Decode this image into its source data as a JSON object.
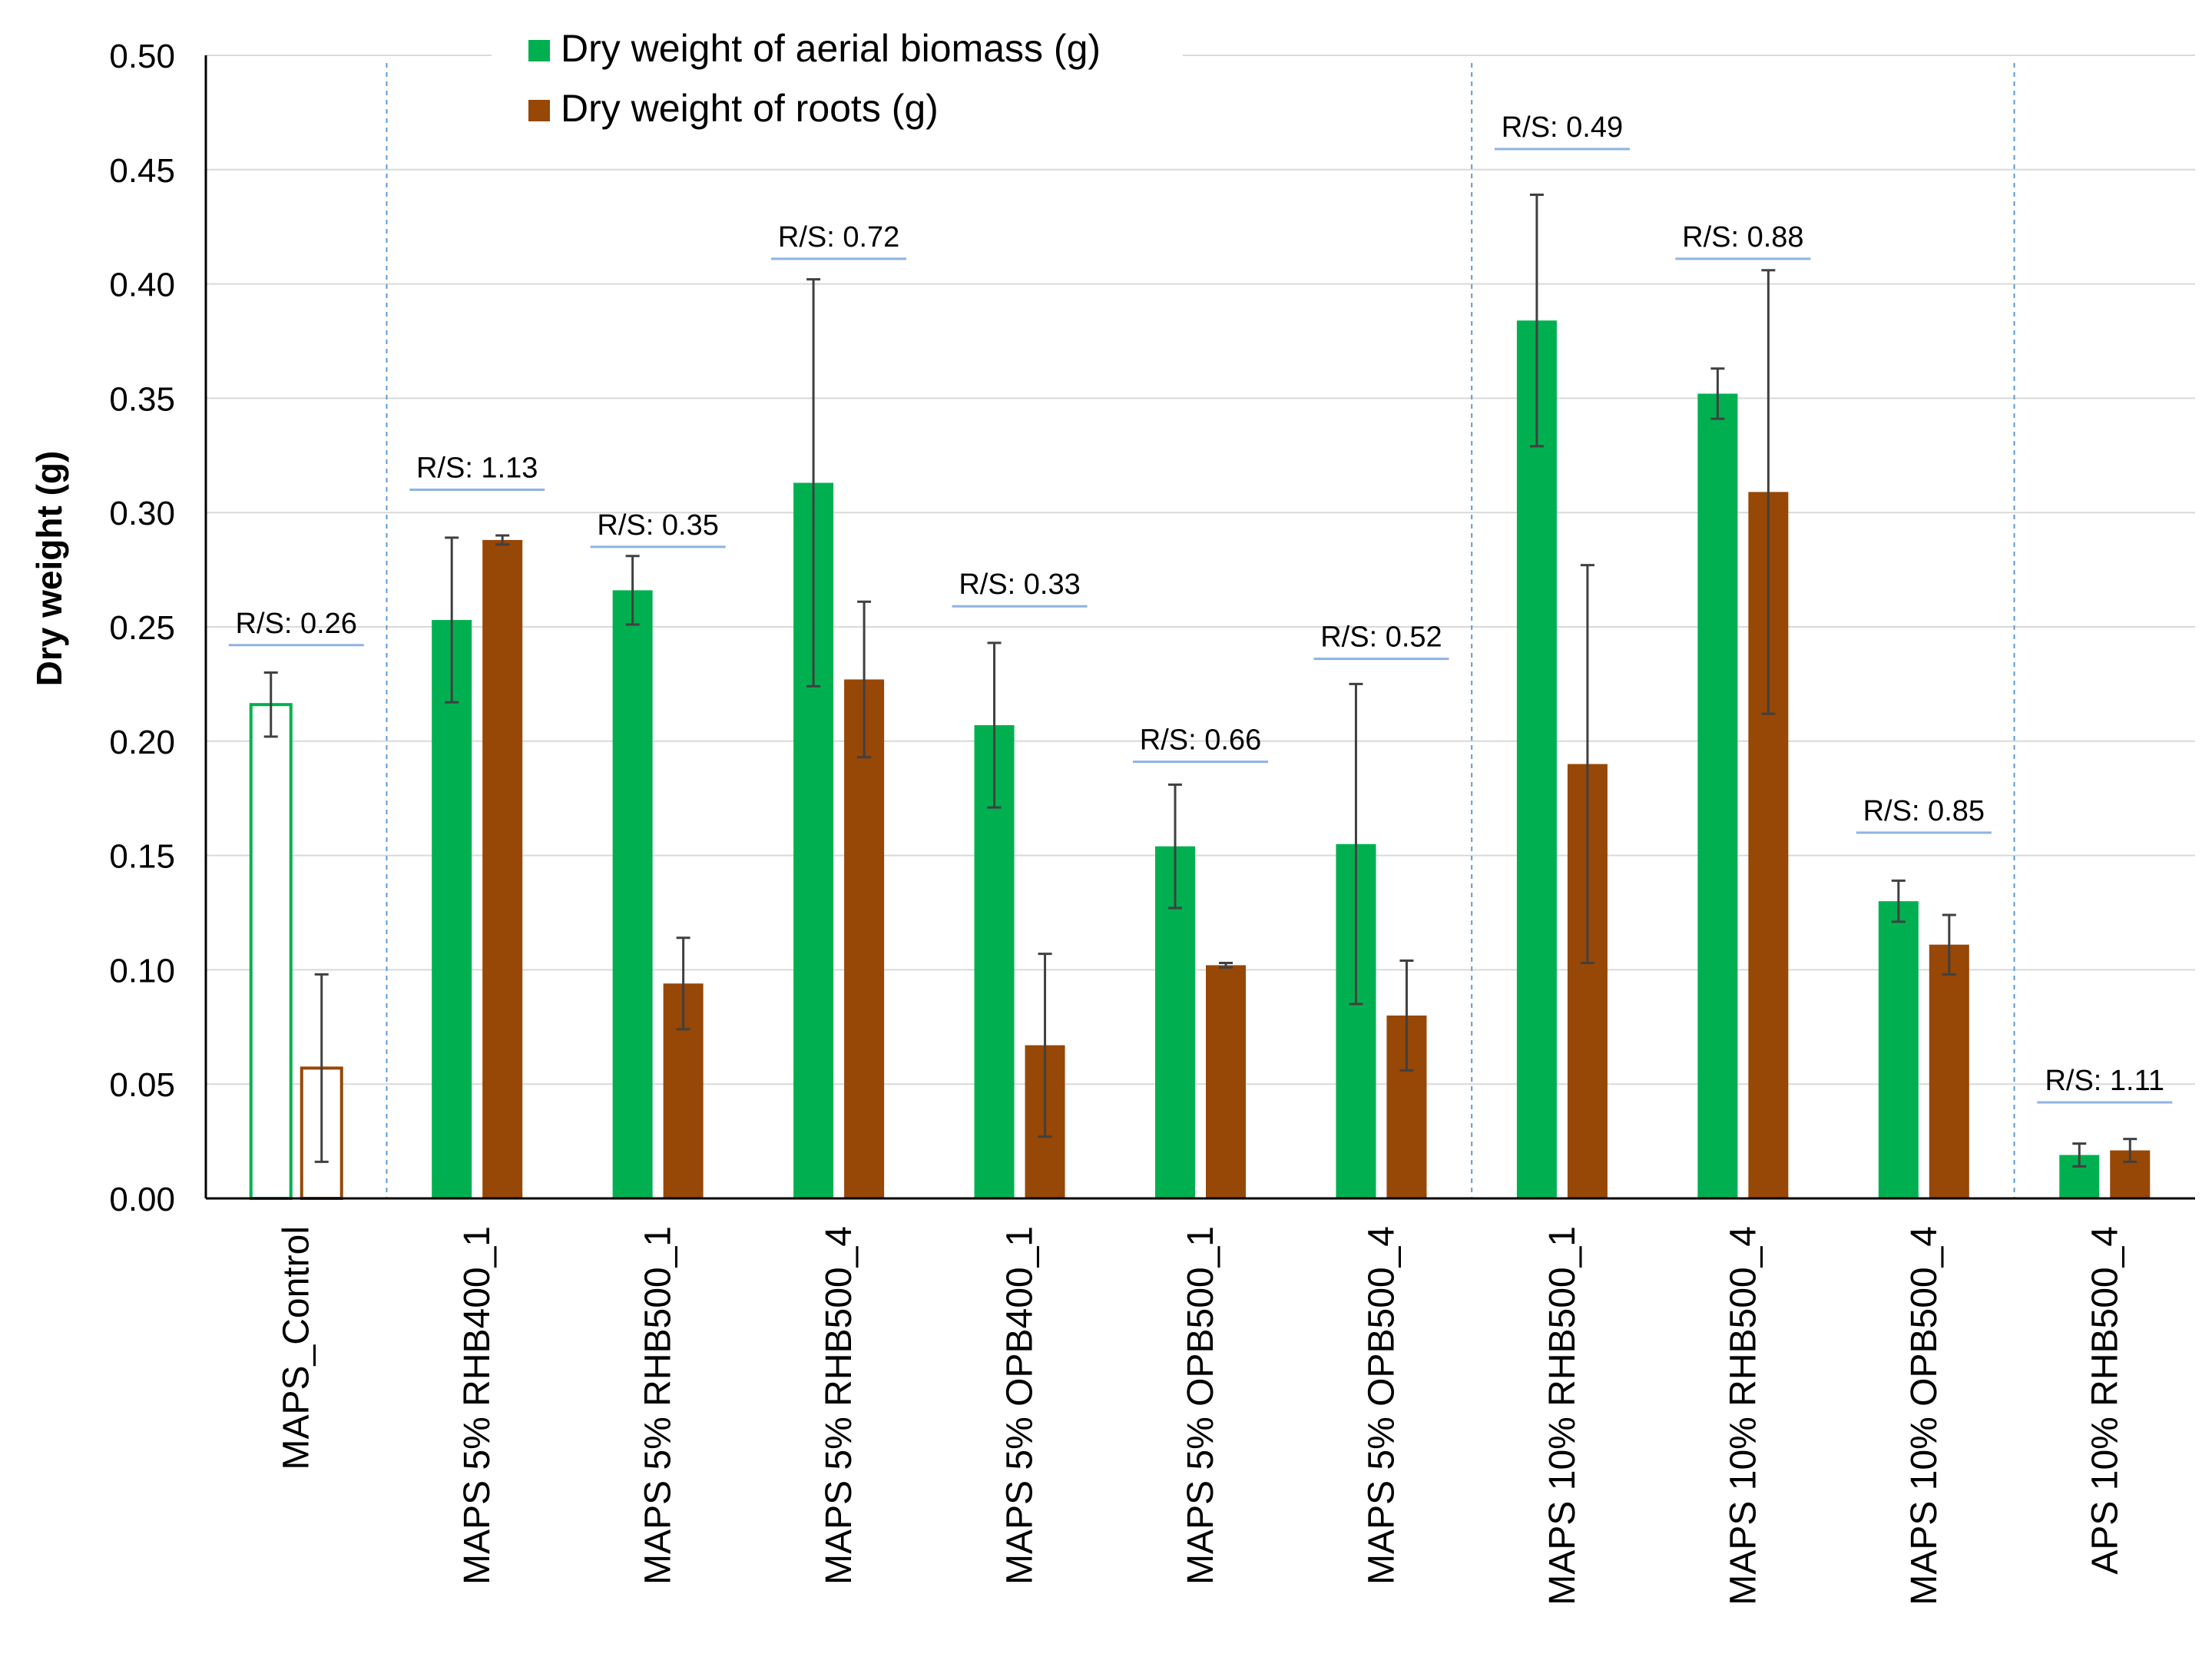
{
  "chart_data": {
    "type": "bar",
    "ylabel": "Dry weight (g)",
    "xlabel": "",
    "ylim": [
      0,
      0.5
    ],
    "yticks": [
      "0.00",
      "0.05",
      "0.10",
      "0.15",
      "0.20",
      "0.25",
      "0.30",
      "0.35",
      "0.40",
      "0.45",
      "0.50"
    ],
    "grid": true,
    "legend_position": "top-center",
    "categories": [
      "MAPS_Control",
      "MAPS 5% RHB400_1",
      "MAPS 5% RHB500_1",
      "MAPS 5% RHB500_4",
      "MAPS 5% OPB400_1",
      "MAPS 5% OPB500_1",
      "MAPS 5% OPB500_4",
      "MAPS 10% RHB500_1",
      "MAPS 10% RHB500_4",
      "MAPS 10% OPB500_4",
      "APS 10% RHB500_4"
    ],
    "series": [
      {
        "name": "Dry weight of aerial biomass (g)",
        "color": "#00b050",
        "values": [
          0.216,
          0.253,
          0.266,
          0.313,
          0.207,
          0.154,
          0.155,
          0.384,
          0.352,
          0.13,
          0.019
        ],
        "errors": [
          0.014,
          0.036,
          0.015,
          0.089,
          0.036,
          0.027,
          0.07,
          0.055,
          0.011,
          0.009,
          0.005
        ]
      },
      {
        "name": "Dry weight of roots (g)",
        "color": "#974706",
        "values": [
          0.057,
          0.288,
          0.094,
          0.227,
          0.067,
          0.102,
          0.08,
          0.19,
          0.309,
          0.111,
          0.021
        ],
        "errors": [
          0.041,
          0.002,
          0.02,
          0.034,
          0.04,
          0.001,
          0.024,
          0.087,
          0.097,
          0.013,
          0.005
        ]
      }
    ],
    "hollow_categories": [
      0
    ],
    "annotations": [
      {
        "category": 0,
        "text": "R/S: 0.26",
        "y": 0.242
      },
      {
        "category": 1,
        "text": "R/S: 1.13",
        "y": 0.31
      },
      {
        "category": 2,
        "text": "R/S: 0.35",
        "y": 0.285
      },
      {
        "category": 3,
        "text": "R/S: 0.72",
        "y": 0.411
      },
      {
        "category": 4,
        "text": "R/S: 0.33",
        "y": 0.259
      },
      {
        "category": 5,
        "text": "R/S: 0.66",
        "y": 0.191
      },
      {
        "category": 6,
        "text": "R/S: 0.52",
        "y": 0.236
      },
      {
        "category": 7,
        "text": "R/S: 0.49",
        "y": 0.459
      },
      {
        "category": 8,
        "text": "R/S: 0.88",
        "y": 0.411
      },
      {
        "category": 9,
        "text": "R/S: 0.85",
        "y": 0.16
      },
      {
        "category": 10,
        "text": "R/S: 1.11",
        "y": 0.042
      }
    ],
    "group_separators_after": [
      0,
      6,
      9
    ]
  }
}
